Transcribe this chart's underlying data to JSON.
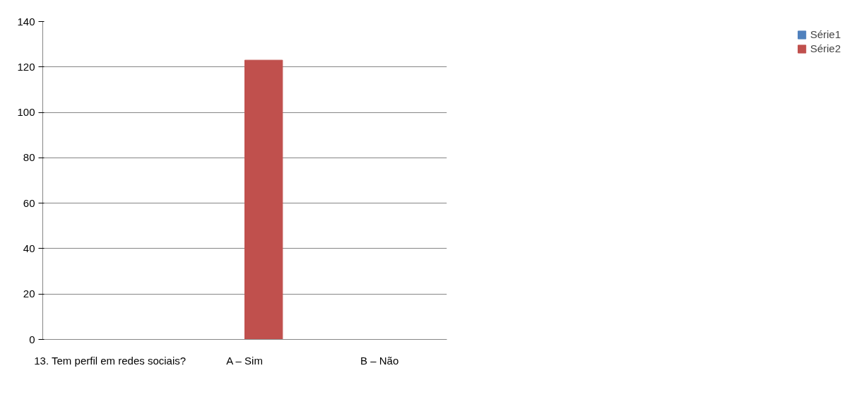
{
  "chart_data": {
    "type": "bar",
    "categories": [
      "13. Tem perfil em redes sociais?",
      "A – Sim",
      "B – Não"
    ],
    "series": [
      {
        "name": "Série1",
        "color": "#4f81bd",
        "values": [
          0,
          0,
          0
        ]
      },
      {
        "name": "Série2",
        "color": "#c0504d",
        "values": [
          0,
          123,
          0
        ]
      }
    ],
    "ylim": [
      0,
      140
    ],
    "yticks": [
      0,
      20,
      40,
      60,
      80,
      100,
      120,
      140
    ],
    "grid": "y",
    "legend": "right"
  }
}
